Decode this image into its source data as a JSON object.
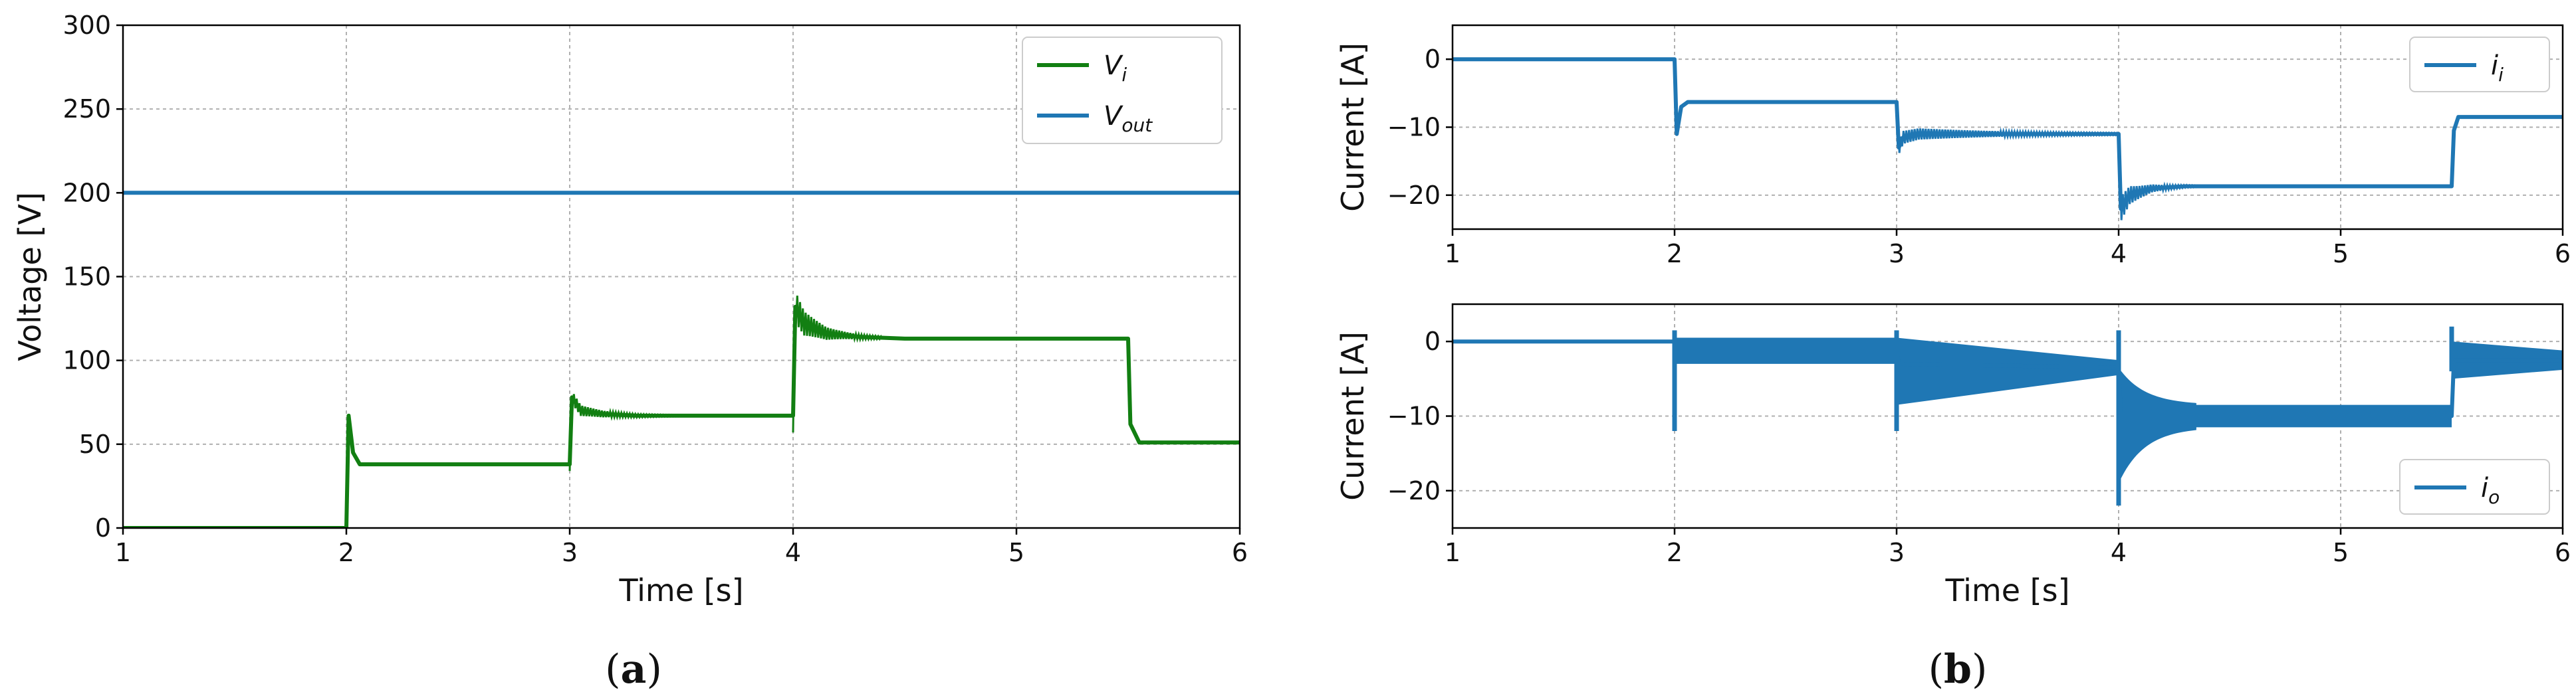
{
  "colors": {
    "green": "#127f12",
    "blue": "#1f77b4"
  },
  "chart_data": [
    {
      "id": "a",
      "type": "line",
      "caption": "a",
      "xlabel": "Time [s]",
      "ylabel": "Voltage [V]",
      "xlim": [
        1,
        6
      ],
      "ylim": [
        0,
        300
      ],
      "xticks": [
        1,
        2,
        3,
        4,
        5,
        6
      ],
      "yticks": [
        0,
        50,
        100,
        150,
        200,
        250,
        300
      ],
      "grid": true,
      "legend_position": "top-right",
      "series": [
        {
          "name": "V",
          "name_sub": "i",
          "color": "#127f12",
          "x": [
            1,
            2.0,
            2.01,
            2.03,
            2.06,
            2.1,
            3.0,
            3.01,
            3.05,
            3.15,
            3.3,
            3.5,
            4.0,
            4.01,
            4.05,
            4.15,
            4.3,
            4.5,
            5.5,
            5.51,
            5.55,
            6
          ],
          "y": [
            0,
            0,
            67,
            45,
            38,
            38,
            38,
            78,
            70,
            68,
            67,
            67,
            67,
            132,
            122,
            116,
            114,
            113,
            113,
            62,
            51,
            51
          ],
          "osc": [
            {
              "t0": 3.0,
              "t1": 3.5,
              "amp": 4,
              "decay": 0.2
            },
            {
              "t0": 4.0,
              "t1": 4.4,
              "amp": 10,
              "decay": 0.15
            }
          ]
        },
        {
          "name": "V",
          "name_sub": "out",
          "color": "#1f77b4",
          "x": [
            1,
            6
          ],
          "y": [
            200,
            200
          ]
        }
      ]
    },
    {
      "id": "b-top",
      "type": "line",
      "caption": "",
      "xlabel": "",
      "ylabel": "Current [A]",
      "xlim": [
        1,
        6
      ],
      "ylim": [
        -25,
        5
      ],
      "xticks": [
        1,
        2,
        3,
        4,
        5,
        6
      ],
      "yticks": [
        -20,
        -10,
        0
      ],
      "grid": true,
      "legend_position": "top-right",
      "series": [
        {
          "name": "i",
          "name_sub": "i",
          "color": "#1f77b4",
          "x": [
            1,
            2.0,
            2.01,
            2.03,
            2.06,
            2.1,
            3.0,
            3.01,
            3.03,
            3.1,
            4.0,
            4.01,
            4.05,
            4.15,
            4.3,
            5.5,
            5.51,
            5.53,
            6
          ],
          "y": [
            0,
            0,
            -11,
            -7,
            -6.3,
            -6.3,
            -6.3,
            -13,
            -11.5,
            -11,
            -11,
            -22,
            -20,
            -19,
            -18.7,
            -18.7,
            -10.5,
            -8.5,
            -8.5
          ],
          "osc": [
            {
              "t0": 3.0,
              "t1": 4.0,
              "amp": 1,
              "decay": 0.5
            },
            {
              "t0": 4.0,
              "t1": 4.4,
              "amp": 2,
              "decay": 0.12
            }
          ]
        }
      ]
    },
    {
      "id": "b-bottom",
      "type": "line",
      "caption": "b",
      "xlabel": "Time [s]",
      "ylabel": "Current [A]",
      "xlim": [
        1,
        6
      ],
      "ylim": [
        -25,
        5
      ],
      "xticks": [
        1,
        2,
        3,
        4,
        5,
        6
      ],
      "yticks": [
        -20,
        -10,
        0
      ],
      "grid": true,
      "legend_position": "bottom-right",
      "series": [
        {
          "name": "i",
          "name_sub": "o",
          "color": "#1f77b4",
          "x": [
            1,
            2.0,
            2.01,
            3.0,
            3.01,
            4.0,
            4.01,
            5.5,
            5.51,
            6
          ],
          "y": [
            0,
            0,
            -1.5,
            -1.5,
            -3,
            -3.5,
            -10,
            -10,
            -2.5,
            -2.5
          ],
          "band": [
            {
              "t0": 2.0,
              "t1": 3.0,
              "top": 0.5,
              "bottom": -3,
              "top_end": 0.5,
              "bottom_end": -3
            },
            {
              "t0": 3.0,
              "t1": 4.0,
              "top": 0.5,
              "bottom": -8.5,
              "top_end": -2.5,
              "bottom_end": -4.5
            },
            {
              "t0": 4.0,
              "t1": 5.5,
              "top": -8.5,
              "bottom": -11.5,
              "top_end": -8.5,
              "bottom_end": -11.5
            },
            {
              "t0": 5.5,
              "t1": 6.0,
              "top": 0,
              "bottom": -5,
              "top_end": -1.2,
              "bottom_end": -3.8
            }
          ],
          "band_envelope": [
            {
              "t0": 4.0,
              "t1": 4.35,
              "top": -3.5,
              "bottom": -19
            }
          ],
          "spikes": [
            {
              "t": 2.0,
              "min": -12,
              "max": 1.5
            },
            {
              "t": 3.0,
              "min": -12,
              "max": 1.5
            },
            {
              "t": 4.0,
              "min": -22,
              "max": 1.5
            },
            {
              "t": 5.5,
              "min": -4,
              "max": 2
            }
          ]
        }
      ]
    }
  ]
}
